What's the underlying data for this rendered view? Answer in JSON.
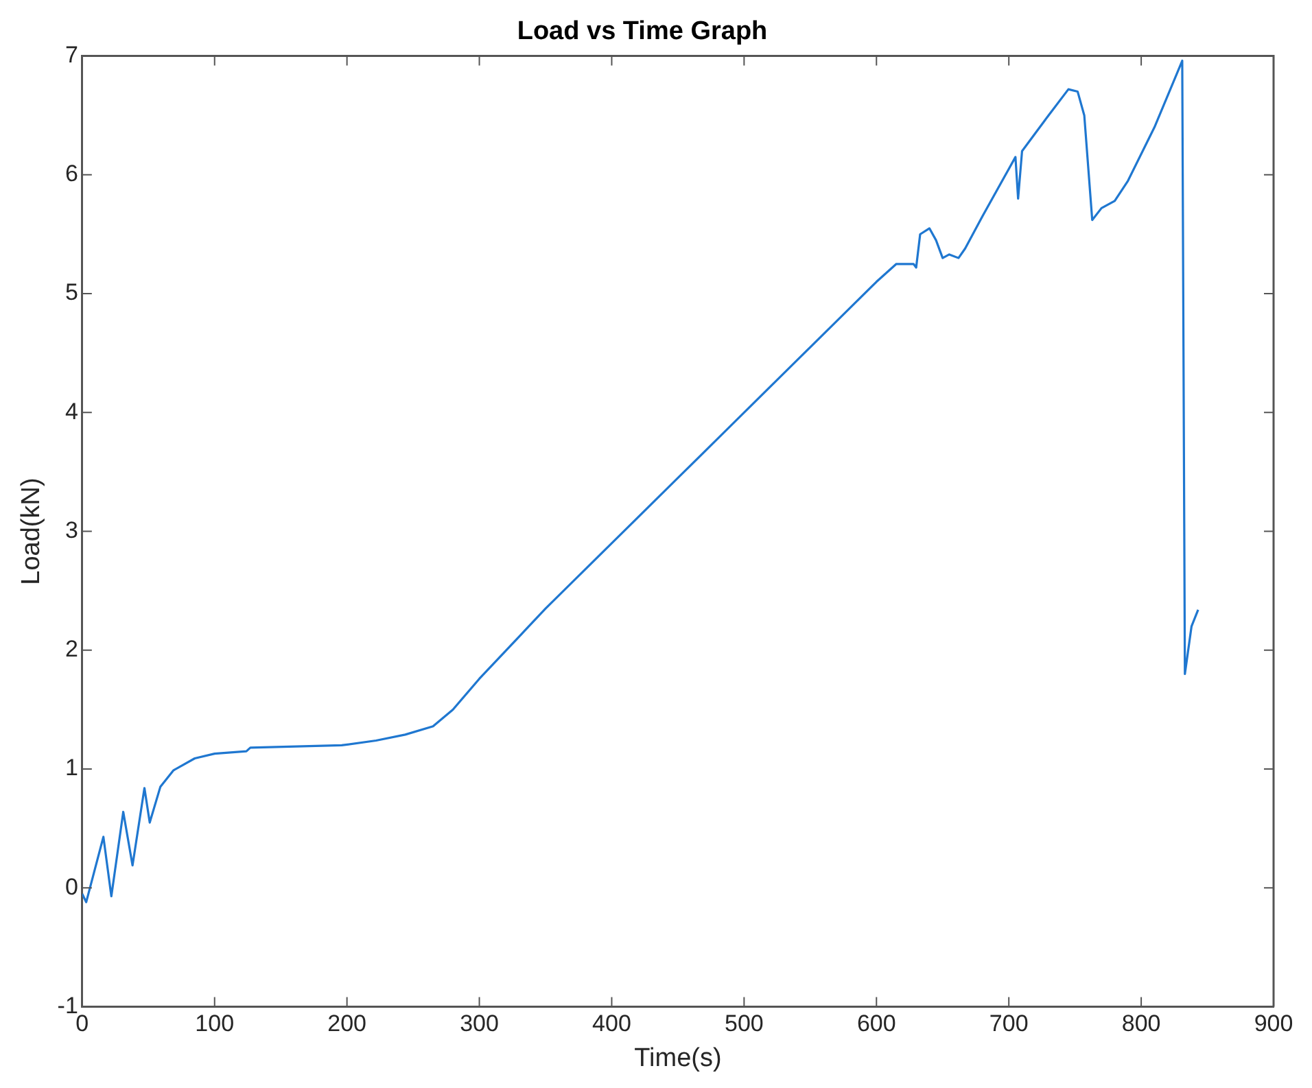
{
  "chart_data": {
    "type": "line",
    "title": "Load vs Time Graph",
    "xlabel": "Time(s)",
    "ylabel": "Load(kN)",
    "xlim": [
      0,
      900
    ],
    "xticks": [
      0,
      100,
      200,
      300,
      400,
      500,
      600,
      700,
      800,
      900
    ],
    "ylim": [
      -1,
      7
    ],
    "yticks": [
      -1,
      0,
      1,
      2,
      3,
      4,
      5,
      6,
      7
    ],
    "grid": false,
    "legend": false,
    "marker": "none",
    "line_style": "solid",
    "series": [
      {
        "color": "#1f77d0",
        "x": [
          0,
          3,
          16,
          22,
          31,
          38,
          47,
          51,
          59,
          69,
          85,
          100,
          124,
          127,
          196,
          222,
          244,
          265,
          280,
          300,
          350,
          400,
          450,
          500,
          550,
          600,
          615,
          628,
          630,
          633,
          640,
          645,
          650,
          655,
          662,
          667,
          680,
          700,
          705,
          707,
          710,
          730,
          745,
          752,
          757,
          763,
          770,
          780,
          790,
          810,
          831,
          833,
          838,
          843
        ],
        "values": [
          -0.05,
          -0.12,
          0.43,
          -0.07,
          0.64,
          0.19,
          0.84,
          0.55,
          0.85,
          0.99,
          1.09,
          1.13,
          1.15,
          1.18,
          1.2,
          1.24,
          1.29,
          1.36,
          1.5,
          1.76,
          2.35,
          2.9,
          3.45,
          4.0,
          4.55,
          5.1,
          5.25,
          5.25,
          5.22,
          5.5,
          5.55,
          5.45,
          5.3,
          5.33,
          5.3,
          5.38,
          5.65,
          6.05,
          6.15,
          5.8,
          6.2,
          6.5,
          6.72,
          6.7,
          6.5,
          5.62,
          5.72,
          5.78,
          5.95,
          6.4,
          6.96,
          1.8,
          2.2,
          2.34
        ]
      }
    ]
  }
}
